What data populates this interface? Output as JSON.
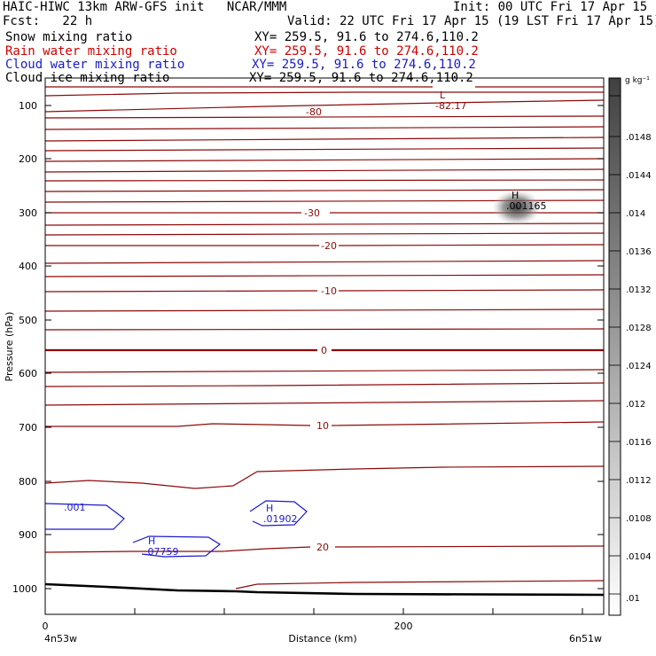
{
  "header": {
    "title": "HAIC-HIWC 13km ARW-GFS init   NCAR/MMM",
    "init": "Init: 00 UTC Fri 17 Apr 15",
    "fcst": "Fcst:   22 h",
    "valid": "Valid: 22 UTC Fri 17 Apr 15 (19 LST Fri 17 Apr 15)"
  },
  "fields": [
    {
      "name": "Snow mixing ratio",
      "xy": "XY= 259.5, 91.6 to 274.6,110.2",
      "color": "#000000"
    },
    {
      "name": "Rain water mixing ratio",
      "xy": "XY= 259.5, 91.6 to 274.6,110.2",
      "color": "#d00000"
    },
    {
      "name": "Cloud water mixing ratio",
      "xy": "XY= 259.5, 91.6 to 274.6,110.2",
      "color": "#1a1ad0"
    },
    {
      "name": "Cloud ice mixing ratio",
      "xy": "XY= 259.5, 91.6 to 274.6,110.2",
      "color": "#000000"
    }
  ],
  "chart_data": {
    "type": "contour",
    "ylabel": "Pressure (hPa)",
    "xlabel": "Distance (km)",
    "x_ticks": [
      "0",
      "200"
    ],
    "y_ticks": [
      "100",
      "200",
      "300",
      "400",
      "500",
      "600",
      "700",
      "800",
      "900",
      "1000"
    ],
    "x_endpoints": {
      "left": "4n53w",
      "right": "6n51w"
    },
    "temperature_labels": [
      "-80",
      "-30",
      "-20",
      "-10",
      "0",
      "10",
      "20"
    ],
    "temperature_extrema": [
      {
        "mark": "L",
        "value": "-82.17"
      }
    ],
    "cloud_ice_max": {
      "mark": "H",
      "value": ".001165"
    },
    "cloud_water": [
      {
        "mark": "",
        "value": ".001"
      },
      {
        "mark": "H",
        "value": ".07759"
      },
      {
        "mark": "H",
        "value": ".01902"
      }
    ],
    "colorbar": {
      "units": "g kg⁻¹",
      "ticks": [
        ".0148",
        ".0144",
        ".014",
        ".0136",
        ".0132",
        ".0128",
        ".0124",
        ".012",
        ".0116",
        ".0112",
        ".0108",
        ".0104",
        ".01"
      ]
    }
  }
}
